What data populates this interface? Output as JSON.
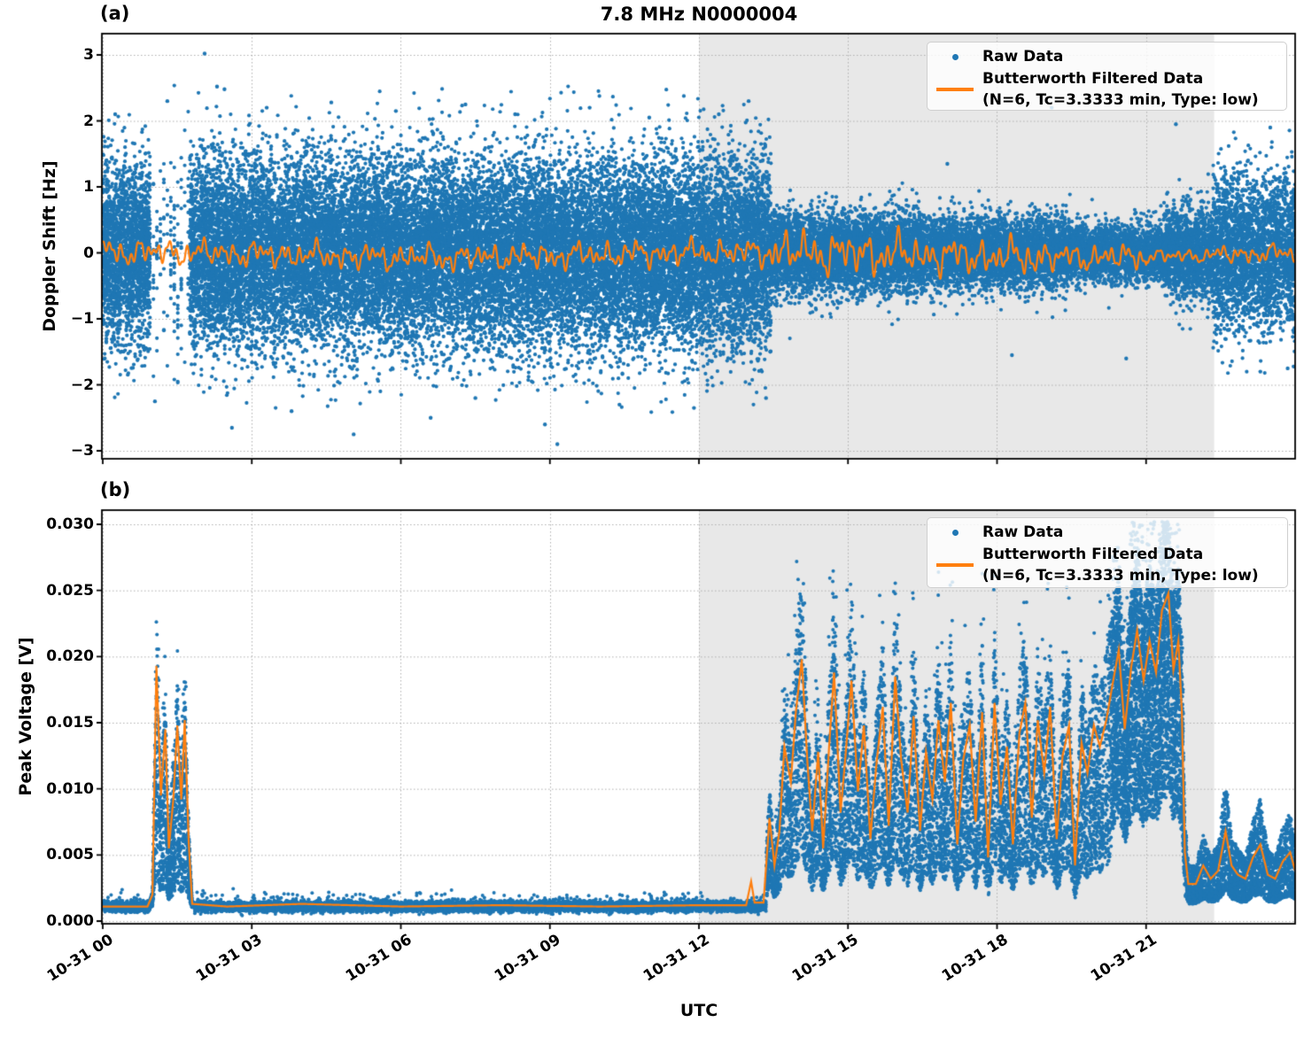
{
  "figure": {
    "title": "7.8 MHz N0000004",
    "xlabel": "UTC"
  },
  "colors": {
    "raw": "#1f77b4",
    "filtered": "#ff7f0e",
    "shade": "#e8e8e8",
    "grid": "#b0b0b0",
    "spine": "#000000",
    "background": "#ffffff"
  },
  "legend": {
    "raw_label": "Raw Data",
    "filtered_label": "Butterworth Filtered Data",
    "filtered_sublabel": "(N=6, Tc=3.3333 min, Type: low)"
  },
  "panels": [
    {
      "tag": "(a)",
      "ylabel": "Doppler Shift [Hz]",
      "yticks": [
        {
          "label": "3",
          "value": 3
        },
        {
          "label": "2",
          "value": 2
        },
        {
          "label": "1",
          "value": 1
        },
        {
          "label": "0",
          "value": 0
        },
        {
          "label": "−1",
          "value": -1
        },
        {
          "label": "−2",
          "value": -2
        },
        {
          "label": "−3",
          "value": -3
        }
      ]
    },
    {
      "tag": "(b)",
      "ylabel": "Peak Voltage [V]",
      "yticks": [
        {
          "label": "0.030",
          "value": 0.03
        },
        {
          "label": "0.025",
          "value": 0.025
        },
        {
          "label": "0.020",
          "value": 0.02
        },
        {
          "label": "0.015",
          "value": 0.015
        },
        {
          "label": "0.010",
          "value": 0.01
        },
        {
          "label": "0.005",
          "value": 0.005
        },
        {
          "label": "0.000",
          "value": 0.0
        }
      ]
    }
  ],
  "xticks": [
    {
      "label": "10-31 00",
      "hour": 0
    },
    {
      "label": "10-31 03",
      "hour": 3
    },
    {
      "label": "10-31 06",
      "hour": 6
    },
    {
      "label": "10-31 09",
      "hour": 9
    },
    {
      "label": "10-31 12",
      "hour": 12
    },
    {
      "label": "10-31 15",
      "hour": 15
    },
    {
      "label": "10-31 18",
      "hour": 18
    },
    {
      "label": "10-31 21",
      "hour": 21
    }
  ],
  "chart_data": [
    {
      "type": "scatter",
      "panel": "a",
      "title": "7.8 MHz N0000004",
      "ylabel": "Doppler Shift [Hz]",
      "xlabel": "UTC",
      "ylim": [
        -3.12,
        3.32
      ],
      "x_range_utc": [
        "10-31 00:00",
        "11-01 00:00"
      ],
      "x_hours_range": [
        0,
        24
      ],
      "grid": true,
      "legend_position": "upper right",
      "shaded_region_hours": {
        "start": 12.0,
        "end": 22.37
      },
      "series": [
        {
          "name": "Raw Data",
          "kind": "scatter",
          "color": "#1f77b4",
          "raw_scatter_segments": [
            {
              "start_h": 0.0,
              "end_h": 0.95,
              "points": 2000,
              "std_hz": 0.7
            },
            {
              "start_h": 0.95,
              "end_h": 1.75,
              "points": 150,
              "std_hz": 0.82,
              "sparse": true
            },
            {
              "start_h": 1.75,
              "end_h": 13.45,
              "points": 25000,
              "std_hz": 0.7
            },
            {
              "start_h": 13.45,
              "end_h": 16.5,
              "points": 4800,
              "std_hz": 0.3
            },
            {
              "start_h": 16.5,
              "end_h": 19.5,
              "points": 4200,
              "std_hz": 0.27
            },
            {
              "start_h": 19.5,
              "end_h": 21.35,
              "points": 2300,
              "std_hz": 0.21
            },
            {
              "start_h": 21.35,
              "end_h": 22.35,
              "points": 1500,
              "std_hz": 0.34
            },
            {
              "start_h": 22.35,
              "end_h": 24.0,
              "points": 2800,
              "std_hz": 0.56
            }
          ],
          "outliers_h_hz": [
            [
              2.05,
              3.02
            ],
            [
              2.3,
              2.52
            ],
            [
              2.45,
              2.48
            ],
            [
              0.25,
              2.1
            ],
            [
              1.3,
              2.3
            ],
            [
              3.3,
              2.2
            ],
            [
              4.6,
              2.28
            ],
            [
              5.9,
              2.15
            ],
            [
              7.3,
              2.25
            ],
            [
              8.3,
              2.1
            ],
            [
              9.8,
              2.2
            ],
            [
              11.0,
              2.05
            ],
            [
              12.4,
              2.1
            ],
            [
              13.0,
              2.3
            ],
            [
              1.05,
              -2.25
            ],
            [
              2.6,
              -2.65
            ],
            [
              3.8,
              -2.4
            ],
            [
              5.05,
              -2.75
            ],
            [
              6.6,
              -2.5
            ],
            [
              7.5,
              -2.2
            ],
            [
              8.9,
              -2.6
            ],
            [
              9.15,
              -2.9
            ],
            [
              10.4,
              -2.3
            ],
            [
              11.9,
              -2.35
            ],
            [
              13.35,
              -2.2
            ],
            [
              17.0,
              1.35
            ],
            [
              18.3,
              -1.55
            ],
            [
              19.1,
              2.2
            ],
            [
              20.6,
              -1.6
            ],
            [
              21.6,
              1.95
            ],
            [
              23.3,
              -1.8
            ],
            [
              23.85,
              -1.75
            ],
            [
              23.5,
              1.9
            ]
          ]
        },
        {
          "name": "Butterworth Filtered Data (N=6, Tc=3.3333 min, Type: low)",
          "kind": "line",
          "color": "#ff7f0e",
          "mean_hz": -0.03,
          "oscillation_amp_segments": [
            {
              "start_h": 0.0,
              "end_h": 13.4,
              "amp_hz": 0.13
            },
            {
              "start_h": 13.4,
              "end_h": 16.2,
              "amp_hz": 0.21
            },
            {
              "start_h": 16.2,
              "end_h": 19.0,
              "amp_hz": 0.18
            },
            {
              "start_h": 19.0,
              "end_h": 21.0,
              "amp_hz": 0.13
            },
            {
              "start_h": 21.0,
              "end_h": 22.35,
              "amp_hz": 0.07
            },
            {
              "start_h": 22.35,
              "end_h": 24.0,
              "amp_hz": 0.09
            }
          ]
        }
      ]
    },
    {
      "type": "scatter",
      "panel": "b",
      "ylabel": "Peak Voltage [V]",
      "xlabel": "UTC",
      "ylim": [
        -0.0002,
        0.0312
      ],
      "x_range_utc": [
        "10-31 00:00",
        "11-01 00:00"
      ],
      "x_hours_range": [
        0,
        24
      ],
      "grid": true,
      "legend_position": "upper right",
      "shaded_region_hours": {
        "start": 12.0,
        "end": 22.37
      },
      "series": [
        {
          "name": "Raw Data",
          "kind": "scatter",
          "color": "#1f77b4",
          "raw_scatter_segments": [
            {
              "start_h": 0.0,
              "end_h": 0.95,
              "points": 1100,
              "mode": "quiet"
            },
            {
              "start_h": 0.95,
              "end_h": 1.85,
              "points": 1500,
              "mode": "burst"
            },
            {
              "start_h": 1.85,
              "end_h": 12.95,
              "points": 10500,
              "mode": "quiet"
            },
            {
              "start_h": 12.95,
              "end_h": 13.35,
              "points": 400,
              "mode": "quiet"
            },
            {
              "start_h": 13.35,
              "end_h": 20.3,
              "points": 8800,
              "mode": "active"
            },
            {
              "start_h": 20.3,
              "end_h": 21.78,
              "points": 4200,
              "mode": "dense"
            },
            {
              "start_h": 21.78,
              "end_h": 24.0,
              "points": 2700,
              "mode": "tail"
            }
          ]
        },
        {
          "name": "Butterworth Filtered Data (N=6, Tc=3.3333 min, Type: low)",
          "kind": "line",
          "color": "#ff7f0e",
          "filtered_keypoints_h_v": [
            [
              0,
              0.0011
            ],
            [
              0.9,
              0.0011
            ],
            [
              1.0,
              0.002
            ],
            [
              1.08,
              0.0193
            ],
            [
              1.17,
              0.0095
            ],
            [
              1.26,
              0.0145
            ],
            [
              1.33,
              0.0055
            ],
            [
              1.42,
              0.0092
            ],
            [
              1.5,
              0.0148
            ],
            [
              1.58,
              0.0092
            ],
            [
              1.65,
              0.0152
            ],
            [
              1.73,
              0.006
            ],
            [
              1.8,
              0.0013
            ],
            [
              2.5,
              0.0011
            ],
            [
              4.0,
              0.0013
            ],
            [
              6.0,
              0.0011
            ],
            [
              8.0,
              0.0012
            ],
            [
              10.0,
              0.0011
            ],
            [
              12.0,
              0.0012
            ],
            [
              12.95,
              0.0012
            ],
            [
              13.05,
              0.003
            ],
            [
              13.12,
              0.0014
            ],
            [
              13.3,
              0.0014
            ],
            [
              13.42,
              0.0078
            ],
            [
              13.52,
              0.0042
            ],
            [
              13.62,
              0.0068
            ],
            [
              13.72,
              0.0132
            ],
            [
              13.85,
              0.0105
            ],
            [
              13.95,
              0.0158
            ],
            [
              14.07,
              0.0198
            ],
            [
              14.18,
              0.0122
            ],
            [
              14.28,
              0.0068
            ],
            [
              14.4,
              0.0128
            ],
            [
              14.5,
              0.0055
            ],
            [
              14.62,
              0.0132
            ],
            [
              14.72,
              0.0188
            ],
            [
              14.85,
              0.0082
            ],
            [
              14.95,
              0.0125
            ],
            [
              15.07,
              0.0182
            ],
            [
              15.2,
              0.0098
            ],
            [
              15.32,
              0.0148
            ],
            [
              15.45,
              0.0062
            ],
            [
              15.57,
              0.0118
            ],
            [
              15.7,
              0.0162
            ],
            [
              15.82,
              0.0072
            ],
            [
              15.95,
              0.0185
            ],
            [
              16.07,
              0.0122
            ],
            [
              16.2,
              0.0082
            ],
            [
              16.32,
              0.0155
            ],
            [
              16.45,
              0.0068
            ],
            [
              16.57,
              0.0128
            ],
            [
              16.7,
              0.0092
            ],
            [
              16.82,
              0.0152
            ],
            [
              16.95,
              0.0105
            ],
            [
              17.07,
              0.0165
            ],
            [
              17.2,
              0.0058
            ],
            [
              17.32,
              0.0122
            ],
            [
              17.45,
              0.0148
            ],
            [
              17.57,
              0.0075
            ],
            [
              17.7,
              0.0158
            ],
            [
              17.82,
              0.0048
            ],
            [
              17.95,
              0.0165
            ],
            [
              18.07,
              0.0088
            ],
            [
              18.2,
              0.0132
            ],
            [
              18.32,
              0.0058
            ],
            [
              18.45,
              0.0142
            ],
            [
              18.57,
              0.0165
            ],
            [
              18.7,
              0.0078
            ],
            [
              18.82,
              0.0152
            ],
            [
              18.95,
              0.0112
            ],
            [
              19.07,
              0.0162
            ],
            [
              19.2,
              0.0062
            ],
            [
              19.32,
              0.0125
            ],
            [
              19.45,
              0.0148
            ],
            [
              19.57,
              0.0042
            ],
            [
              19.7,
              0.0135
            ],
            [
              19.82,
              0.0112
            ],
            [
              19.95,
              0.0148
            ],
            [
              20.07,
              0.0132
            ],
            [
              20.2,
              0.0152
            ],
            [
              20.32,
              0.0178
            ],
            [
              20.45,
              0.0205
            ],
            [
              20.57,
              0.0145
            ],
            [
              20.7,
              0.0192
            ],
            [
              20.82,
              0.022
            ],
            [
              20.95,
              0.0182
            ],
            [
              21.07,
              0.0212
            ],
            [
              21.2,
              0.0188
            ],
            [
              21.32,
              0.0235
            ],
            [
              21.45,
              0.0248
            ],
            [
              21.55,
              0.019
            ],
            [
              21.65,
              0.0212
            ],
            [
              21.72,
              0.0158
            ],
            [
              21.78,
              0.0052
            ],
            [
              21.85,
              0.0028
            ],
            [
              22.0,
              0.0028
            ],
            [
              22.15,
              0.0042
            ],
            [
              22.3,
              0.0032
            ],
            [
              22.45,
              0.0038
            ],
            [
              22.6,
              0.0068
            ],
            [
              22.72,
              0.0042
            ],
            [
              22.85,
              0.0035
            ],
            [
              23.0,
              0.0032
            ],
            [
              23.15,
              0.0048
            ],
            [
              23.3,
              0.0058
            ],
            [
              23.45,
              0.0035
            ],
            [
              23.6,
              0.0032
            ],
            [
              23.75,
              0.0045
            ],
            [
              23.9,
              0.0052
            ],
            [
              24.0,
              0.0038
            ]
          ]
        }
      ]
    }
  ]
}
